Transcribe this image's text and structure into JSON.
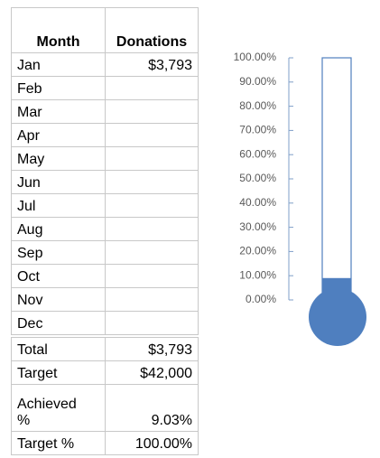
{
  "table": {
    "header": [
      "Month",
      "Donations"
    ],
    "rows": [
      [
        "Jan",
        "$3,793"
      ],
      [
        "Feb"
      ],
      [
        "Mar"
      ],
      [
        "Apr"
      ],
      [
        "May"
      ],
      [
        "Jun"
      ],
      [
        "Jul"
      ],
      [
        "Aug"
      ],
      [
        "Sep"
      ],
      [
        "Oct"
      ],
      [
        "Nov"
      ],
      [
        "Dec"
      ]
    ],
    "summary": [
      [
        "Total",
        "$3,793"
      ],
      [
        "Target",
        "$42,000"
      ],
      [
        "Achieved %",
        "9.03%"
      ],
      [
        "Target %",
        "100.00%"
      ]
    ]
  },
  "chart_data": {
    "type": "bar",
    "values": [
      9.03
    ],
    "color": "#4f7fbf",
    "ylim": [
      0,
      100
    ],
    "yticks": [
      {
        "value": 0,
        "label": "0.00%"
      },
      {
        "value": 10,
        "label": "10.00%"
      },
      {
        "value": 20,
        "label": "20.00%"
      },
      {
        "value": 30,
        "label": "30.00%"
      },
      {
        "value": 40,
        "label": "40.00%"
      },
      {
        "value": 50,
        "label": "50.00%"
      },
      {
        "value": 60,
        "label": "60.00%"
      },
      {
        "value": 70,
        "label": "70.00%"
      },
      {
        "value": 80,
        "label": "80.00%"
      },
      {
        "value": 90,
        "label": "90.00%"
      },
      {
        "value": 100,
        "label": "100.00%"
      }
    ]
  }
}
